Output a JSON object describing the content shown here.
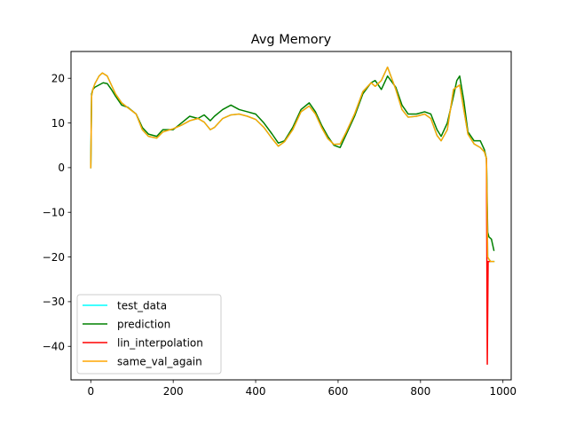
{
  "chart_data": {
    "type": "line",
    "title": "Avg Memory",
    "xlabel": "",
    "ylabel": "",
    "xlim": [
      -48,
      1020
    ],
    "ylim": [
      -47.5,
      26
    ],
    "xticks": [
      0,
      200,
      400,
      600,
      800,
      1000
    ],
    "xtick_labels": [
      "0",
      "200",
      "400",
      "600",
      "800",
      "1000"
    ],
    "yticks": [
      -40,
      -30,
      -20,
      -10,
      0,
      10,
      20
    ],
    "ytick_labels": [
      "−40",
      "−30",
      "−20",
      "−10",
      "0",
      "10",
      "20"
    ],
    "grid": false,
    "legend_position": "lower-left",
    "series": [
      {
        "name": "test_data",
        "color": "#00ffff",
        "x": [
          0,
          2,
          5,
          10,
          20,
          28,
          40,
          50,
          60,
          75,
          90,
          110,
          125,
          140,
          160,
          175,
          200,
          220,
          240,
          260,
          275,
          290,
          300,
          320,
          340,
          360,
          380,
          400,
          420,
          440,
          455,
          470,
          490,
          510,
          530,
          545,
          560,
          575,
          590,
          605,
          620,
          640,
          660,
          680,
          690,
          705,
          720,
          740,
          755,
          770,
          790,
          810,
          825,
          840,
          850,
          865,
          880,
          895,
          905,
          915,
          930,
          945,
          955,
          960,
          963,
          966,
          970,
          978
        ],
        "y": [
          0,
          16,
          17.5,
          18.8,
          20.5,
          21.2,
          20.5,
          18.5,
          16.5,
          14.5,
          13.4,
          12.0,
          8.5,
          7.0,
          6.6,
          8.0,
          8.7,
          9.5,
          10.5,
          11.0,
          10.2,
          8.5,
          9.0,
          11.0,
          11.8,
          12.0,
          11.5,
          10.8,
          9.0,
          6.5,
          4.8,
          5.8,
          8.5,
          12.5,
          13.8,
          12.0,
          9.0,
          6.5,
          5.2,
          5.3,
          8.0,
          12.0,
          17.0,
          19.0,
          18.2,
          19.5,
          22.5,
          17.5,
          13.0,
          11.3,
          11.5,
          12.0,
          11.0,
          7.2,
          6.0,
          8.5,
          17.5,
          18.5,
          13.0,
          7.5,
          5.3,
          4.5,
          3.5,
          2.0,
          -20.0,
          -20.5,
          -21.0,
          -21.0
        ]
      },
      {
        "name": "prediction",
        "color": "#008000",
        "x": [
          0,
          2,
          5,
          10,
          20,
          30,
          40,
          50,
          60,
          75,
          90,
          110,
          125,
          140,
          160,
          175,
          200,
          220,
          240,
          260,
          275,
          290,
          300,
          320,
          340,
          360,
          380,
          400,
          420,
          440,
          455,
          470,
          490,
          510,
          530,
          545,
          560,
          575,
          590,
          605,
          620,
          640,
          660,
          680,
          690,
          705,
          720,
          740,
          755,
          770,
          790,
          810,
          825,
          840,
          850,
          865,
          880,
          888,
          895,
          905,
          915,
          930,
          945,
          955,
          960,
          963,
          966,
          972,
          978
        ],
        "y": [
          0,
          16.5,
          17.5,
          18.0,
          18.5,
          19.0,
          18.8,
          17.5,
          16.0,
          14.0,
          13.5,
          12.0,
          9.0,
          7.5,
          7.0,
          8.5,
          8.5,
          10.0,
          11.5,
          11.0,
          11.8,
          10.5,
          11.5,
          13.0,
          14.0,
          13.0,
          12.5,
          12.0,
          10.0,
          7.5,
          5.5,
          6.0,
          9.0,
          13.0,
          14.5,
          12.5,
          9.5,
          7.0,
          5.0,
          4.5,
          7.5,
          11.5,
          16.5,
          19.0,
          19.5,
          17.5,
          20.5,
          18.0,
          14.0,
          12.0,
          12.0,
          12.5,
          12.0,
          8.5,
          7.0,
          10.0,
          16.0,
          19.5,
          20.5,
          15.0,
          8.0,
          6.0,
          6.0,
          4.0,
          2.0,
          -14.5,
          -15.5,
          -16.0,
          -18.5
        ]
      },
      {
        "name": "lin_interpolation",
        "color": "#ff0000",
        "x": [
          960,
          962,
          964,
          966,
          968
        ],
        "y": [
          2.0,
          -44.0,
          -21.0,
          -21.0,
          -21.0
        ]
      },
      {
        "name": "same_val_again",
        "color": "#ffa500",
        "x": [
          0,
          2,
          5,
          10,
          20,
          28,
          40,
          50,
          60,
          75,
          90,
          110,
          125,
          140,
          160,
          175,
          200,
          220,
          240,
          260,
          275,
          290,
          300,
          320,
          340,
          360,
          380,
          400,
          420,
          440,
          455,
          470,
          490,
          510,
          530,
          545,
          560,
          575,
          590,
          605,
          620,
          640,
          660,
          680,
          690,
          705,
          720,
          740,
          755,
          770,
          790,
          810,
          825,
          840,
          850,
          865,
          880,
          895,
          905,
          915,
          930,
          945,
          955,
          960,
          963,
          966,
          970,
          978
        ],
        "y": [
          0,
          16,
          17.5,
          18.8,
          20.5,
          21.2,
          20.5,
          18.5,
          16.5,
          14.5,
          13.4,
          12.0,
          8.5,
          7.0,
          6.6,
          8.0,
          8.7,
          9.5,
          10.5,
          11.0,
          10.2,
          8.5,
          9.0,
          11.0,
          11.8,
          12.0,
          11.5,
          10.8,
          9.0,
          6.5,
          4.8,
          5.8,
          8.5,
          12.5,
          13.8,
          12.0,
          9.0,
          6.5,
          5.2,
          5.3,
          8.0,
          12.0,
          17.0,
          19.0,
          18.2,
          19.5,
          22.5,
          17.5,
          13.0,
          11.3,
          11.5,
          12.0,
          11.0,
          7.2,
          6.0,
          8.5,
          17.5,
          18.5,
          13.0,
          7.5,
          5.3,
          4.5,
          3.5,
          2.0,
          -20.0,
          -20.5,
          -21.0,
          -21.0
        ]
      }
    ],
    "legend": [
      "test_data",
      "prediction",
      "lin_interpolation",
      "same_val_again"
    ]
  }
}
